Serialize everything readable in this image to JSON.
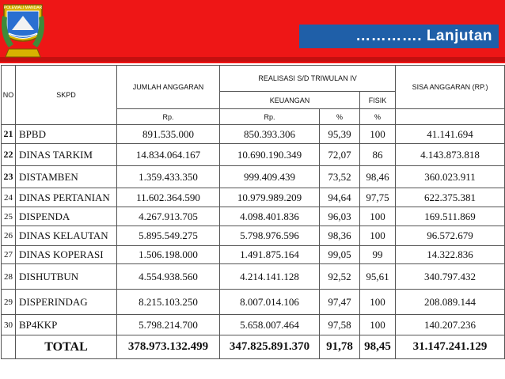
{
  "header": {
    "logo_text": "POLEWALI MANDAR",
    "banner": "…………. Lanjutan",
    "colors": {
      "header_red": "#ee1616",
      "banner_blue": "#1f5fa8"
    }
  },
  "table": {
    "headers": {
      "no": "NO",
      "skpd": "SKPD",
      "jumlah": "JUMLAH ANGGARAN",
      "realisasi": "REALISASI S/D TRIWULAN IV",
      "keuangan": "KEUANGAN",
      "fisik": "FISIK",
      "sisa": "SISA ANGGARAN (RP.)",
      "rp1": "Rp.",
      "rp2": "Rp.",
      "pct1": "%",
      "pct2": "%"
    },
    "rows": [
      {
        "no": "21",
        "skpd": "BPBD",
        "jumlah": "891.535.000",
        "realisasi": "850.393.306",
        "pct": "95,39",
        "fisik": "100",
        "sisa": "41.141.694"
      },
      {
        "no": "22",
        "skpd": "DINAS TARKIM",
        "jumlah": "14.834.064.167",
        "realisasi": "10.690.190.349",
        "pct": "72,07",
        "fisik": "86",
        "sisa": "4.143.873.818"
      },
      {
        "no": "23",
        "skpd": "DISTAMBEN",
        "jumlah": "1.359.433.350",
        "realisasi": "999.409.439",
        "pct": "73,52",
        "fisik": "98,46",
        "sisa": "360.023.911"
      },
      {
        "no": "24",
        "skpd": "DINAS PERTANIAN",
        "jumlah": "11.602.364.590",
        "realisasi": "10.979.989.209",
        "pct": "94,64",
        "fisik": "97,75",
        "sisa": "622.375.381"
      },
      {
        "no": "25",
        "skpd": "DISPENDA",
        "jumlah": "4.267.913.705",
        "realisasi": "4.098.401.836",
        "pct": "96,03",
        "fisik": "100",
        "sisa": "169.511.869"
      },
      {
        "no": "26",
        "skpd": "DINAS KELAUTAN",
        "jumlah": "5.895.549.275",
        "realisasi": "5.798.976.596",
        "pct": "98,36",
        "fisik": "100",
        "sisa": "96.572.679"
      },
      {
        "no": "27",
        "skpd": "DINAS KOPERASI",
        "jumlah": "1.506.198.000",
        "realisasi": "1.491.875.164",
        "pct": "99,05",
        "fisik": "99",
        "sisa": "14.322.836"
      },
      {
        "no": "28",
        "skpd": "DISHUTBUN",
        "jumlah": "4.554.938.560",
        "realisasi": "4.214.141.128",
        "pct": "92,52",
        "fisik": "95,61",
        "sisa": "340.797.432"
      },
      {
        "no": "29",
        "skpd": "DISPERINDAG",
        "jumlah": "8.215.103.250",
        "realisasi": "8.007.014.106",
        "pct": "97,47",
        "fisik": "100",
        "sisa": "208.089.144"
      },
      {
        "no": "30",
        "skpd": "BP4KKP",
        "jumlah": "5.798.214.700",
        "realisasi": "5.658.007.464",
        "pct": "97,58",
        "fisik": "100",
        "sisa": "140.207.236"
      }
    ],
    "total": {
      "label": "TOTAL",
      "jumlah": "378.973.132.499",
      "realisasi": "347.825.891.370",
      "pct": "91,78",
      "fisik": "98,45",
      "sisa": "31.147.241.129"
    }
  }
}
